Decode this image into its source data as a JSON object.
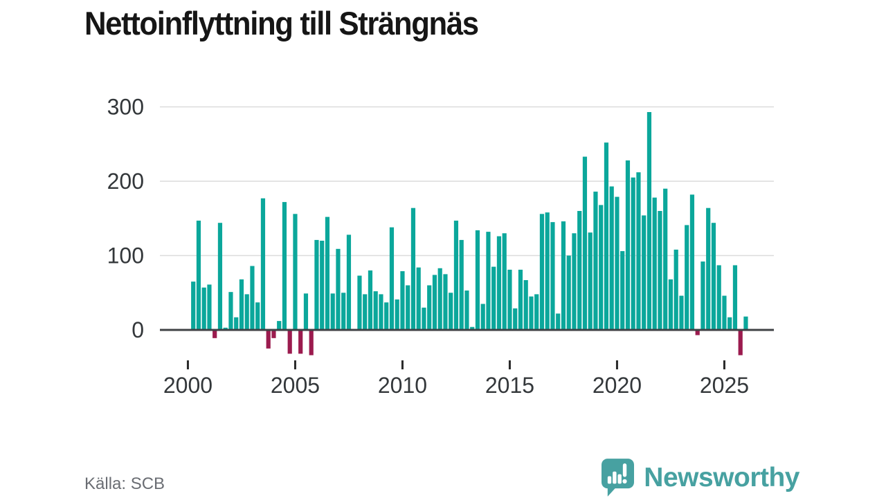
{
  "page": {
    "title": "Nettoinflyttning till Strängnäs"
  },
  "footer": {
    "source": "Källa: SCB",
    "brand": "Newsworthy",
    "brand_color": "#47a1a1",
    "logo_icon": "speech-bubble-with-bar-chart-and-exclamation"
  },
  "chart_data": {
    "type": "bar",
    "title": "Nettoinflyttning till Strängnäs",
    "xlabel": "",
    "ylabel": "",
    "legend": "none",
    "grid": "horizontal-light-gray",
    "y_ticks": [
      0,
      100,
      200,
      300
    ],
    "ylim": [
      -45,
      310
    ],
    "x_tick_years": [
      "2000",
      "2005",
      "2010",
      "2015",
      "2020",
      "2025"
    ],
    "colors": {
      "positive": "#0ba79b",
      "negative": "#9b1b4e"
    },
    "quarters": [
      "2000Q2",
      "2000Q3",
      "2000Q4",
      "2001Q1",
      "2001Q2",
      "2001Q3",
      "2001Q4",
      "2002Q1",
      "2002Q2",
      "2002Q3",
      "2002Q4",
      "2003Q1",
      "2003Q2",
      "2003Q3",
      "2003Q4",
      "2004Q1",
      "2004Q2",
      "2004Q3",
      "2004Q4",
      "2005Q1",
      "2005Q2",
      "2005Q3",
      "2005Q4",
      "2006Q1",
      "2006Q2",
      "2006Q3",
      "2006Q4",
      "2007Q1",
      "2007Q2",
      "2007Q3",
      "2007Q4",
      "2008Q1",
      "2008Q2",
      "2008Q3",
      "2008Q4",
      "2009Q1",
      "2009Q2",
      "2009Q3",
      "2009Q4",
      "2010Q1",
      "2010Q2",
      "2010Q3",
      "2010Q4",
      "2011Q1",
      "2011Q2",
      "2011Q3",
      "2011Q4",
      "2012Q1",
      "2012Q2",
      "2012Q3",
      "2012Q4",
      "2013Q1",
      "2013Q2",
      "2013Q3",
      "2013Q4",
      "2014Q1",
      "2014Q2",
      "2014Q3",
      "2014Q4",
      "2015Q1",
      "2015Q2",
      "2015Q3",
      "2015Q4",
      "2016Q1",
      "2016Q2",
      "2016Q3",
      "2016Q4",
      "2017Q1",
      "2017Q2",
      "2017Q3",
      "2017Q4",
      "2018Q1",
      "2018Q2",
      "2018Q3",
      "2018Q4",
      "2019Q1",
      "2019Q2",
      "2019Q3",
      "2019Q4",
      "2020Q1",
      "2020Q2",
      "2020Q3",
      "2020Q4",
      "2021Q1",
      "2021Q2",
      "2021Q3",
      "2021Q4",
      "2022Q1",
      "2022Q2",
      "2022Q3",
      "2022Q4",
      "2023Q1",
      "2023Q2",
      "2023Q3",
      "2023Q4",
      "2024Q1",
      "2024Q2",
      "2024Q3",
      "2024Q4",
      "2025Q1",
      "2025Q2",
      "2025Q3",
      "2025Q4",
      "2026Q1"
    ],
    "values": [
      65,
      147,
      57,
      61,
      -11,
      144,
      3,
      51,
      17,
      68,
      48,
      86,
      37,
      177,
      -25,
      -11,
      12,
      172,
      -32,
      156,
      -32,
      49,
      -34,
      121,
      120,
      152,
      49,
      109,
      50,
      128,
      0,
      73,
      48,
      80,
      52,
      48,
      37,
      138,
      41,
      79,
      60,
      164,
      84,
      30,
      60,
      74,
      83,
      75,
      50,
      147,
      121,
      53,
      4,
      134,
      35,
      132,
      85,
      126,
      130,
      81,
      29,
      81,
      67,
      45,
      48,
      156,
      158,
      145,
      22,
      146,
      100,
      130,
      160,
      233,
      131,
      186,
      168,
      252,
      193,
      179,
      106,
      228,
      205,
      212,
      154,
      293,
      178,
      160,
      190,
      68,
      108,
      46,
      141,
      182,
      -7,
      92,
      164,
      144,
      87,
      46,
      17,
      87,
      -34,
      18
    ]
  }
}
